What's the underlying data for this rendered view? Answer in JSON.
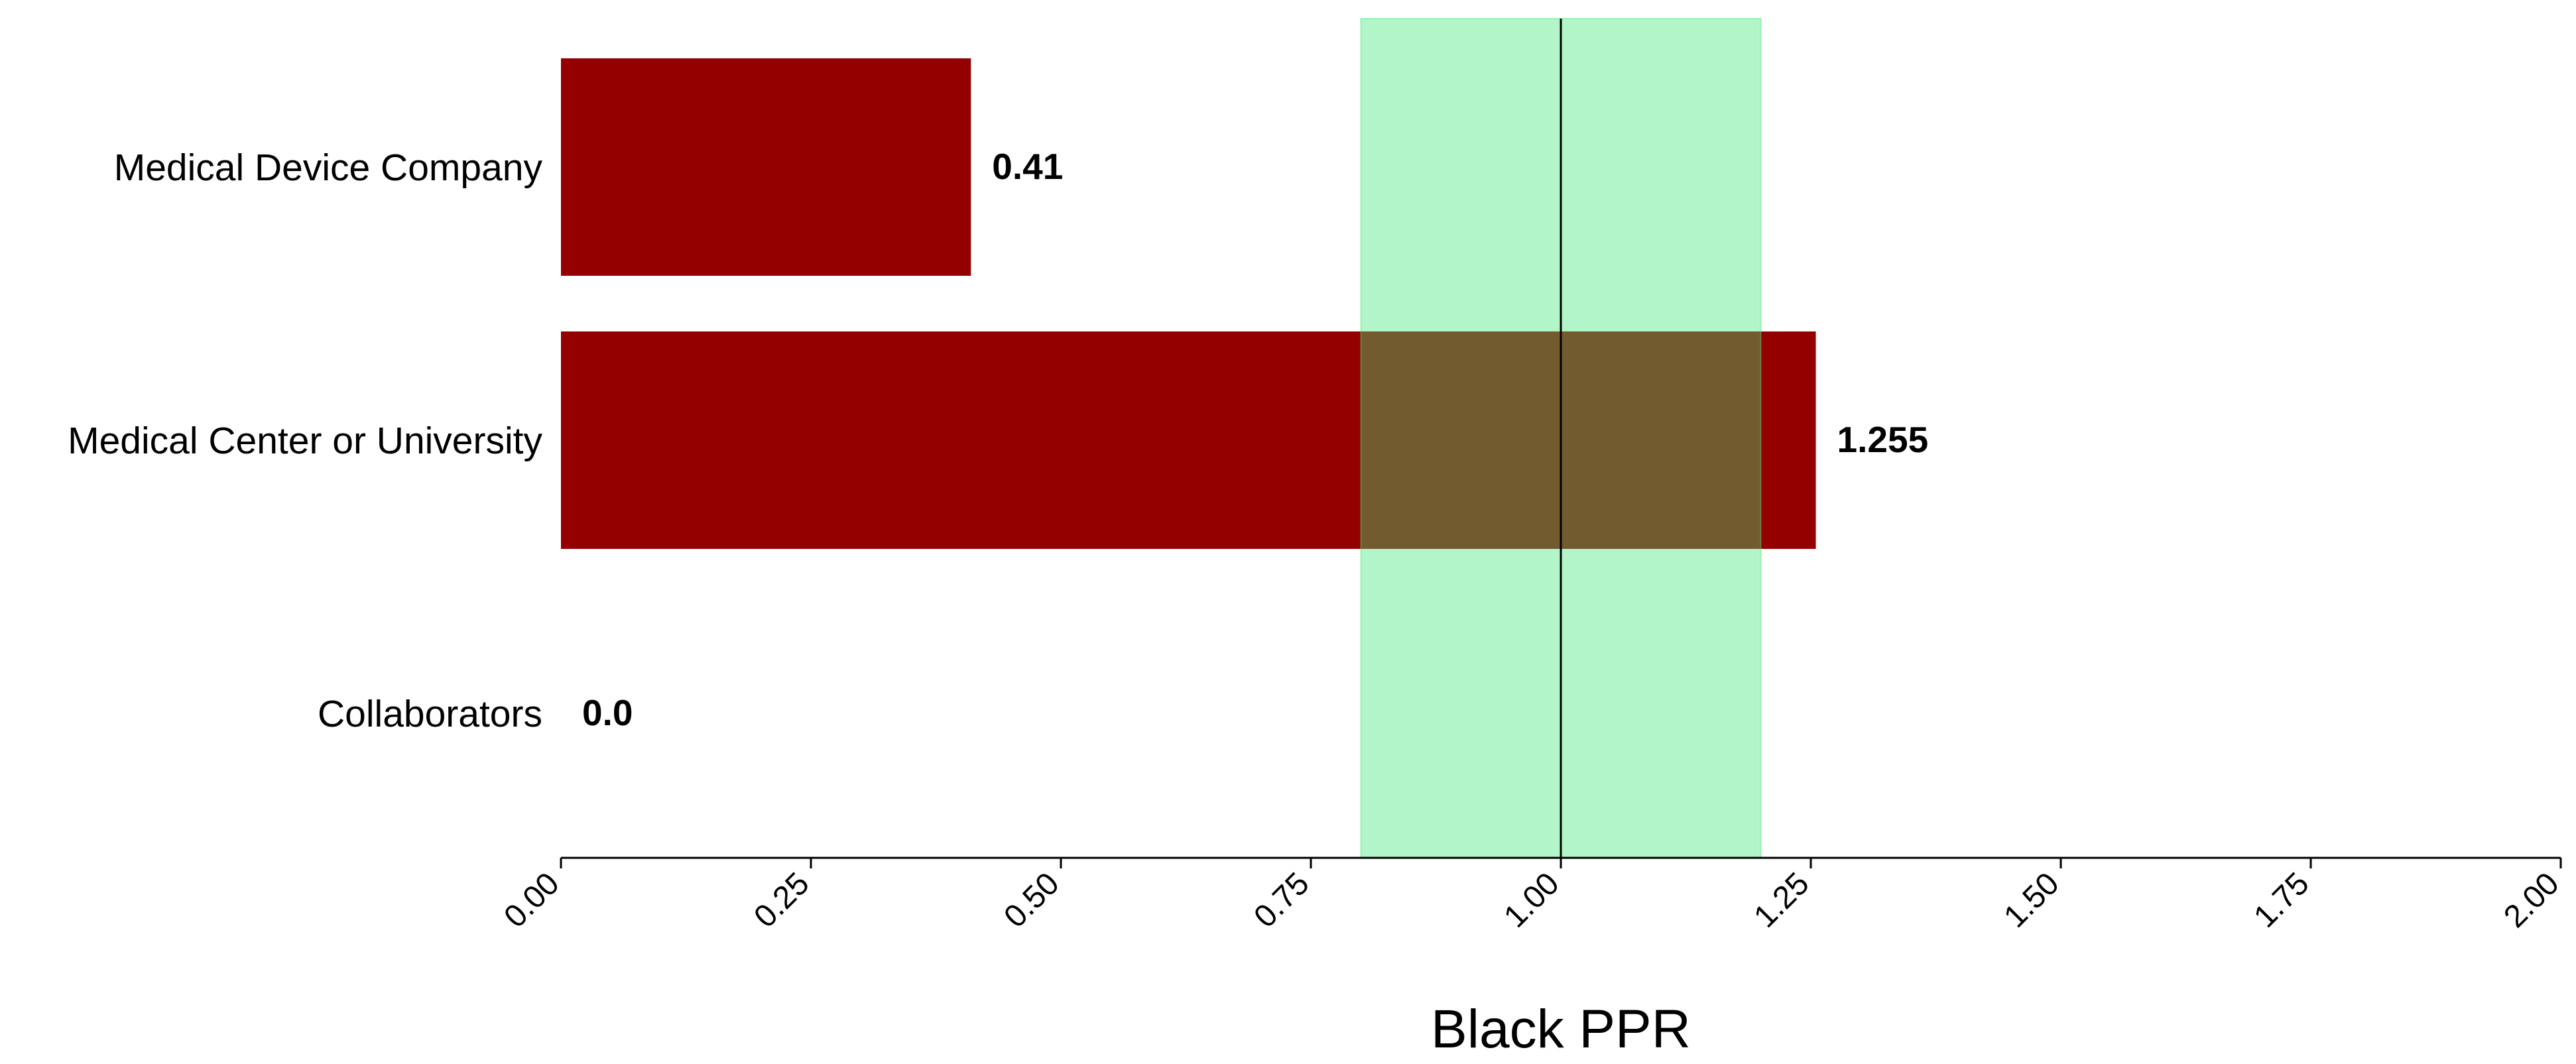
{
  "chart_data": {
    "type": "bar",
    "orientation": "horizontal",
    "categories": [
      "Medical Device Company",
      "Medical Center or University",
      "Collaborators"
    ],
    "values": [
      0.41,
      1.255,
      0.0
    ],
    "value_labels": [
      "0.41",
      "1.255",
      "0.0"
    ],
    "xlabel": "Black PPR",
    "ylabel": "",
    "xlim": [
      0,
      2
    ],
    "xticks": [
      0,
      0.25,
      0.5,
      0.75,
      1.0,
      1.25,
      1.5,
      1.75,
      2.0
    ],
    "xtick_labels": [
      "0.00",
      "0.25",
      "0.50",
      "0.75",
      "1.00",
      "1.25",
      "1.50",
      "1.75",
      "2.00"
    ],
    "reference_band": [
      0.8,
      1.2
    ],
    "reference_line": 1.0,
    "grid": false,
    "legend": "none",
    "colors": {
      "bar": "#940000",
      "band": "#90EEB0",
      "band_overlap": "#8E7844",
      "reference_line": "#000000",
      "axis": "#000000"
    }
  }
}
